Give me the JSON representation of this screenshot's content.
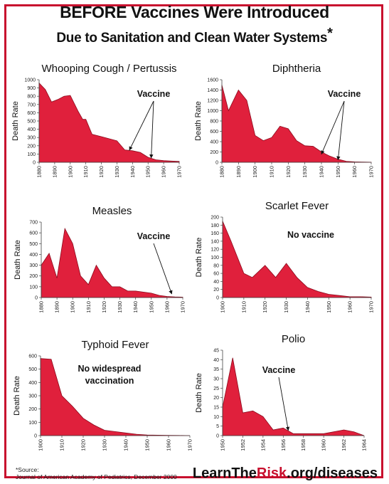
{
  "header": {
    "title_line1": "BEFORE Vaccines Were Introduced",
    "title_line2": "Due to Sanitation and Clean Water Systems",
    "asterisk": "*"
  },
  "footer": {
    "source_label": "*Source:",
    "source_text": "Journal of American Academy of Pediatrics, December 2000",
    "site_prefix": "LearnThe",
    "site_highlight": "Risk",
    "site_suffix": ".org/diseases"
  },
  "colors": {
    "fill": "#e0203c",
    "stroke": "#8a0a1c",
    "axis": "#444444"
  },
  "chart_data": [
    {
      "type": "area",
      "title": "Whooping Cough / Pertussis",
      "ylabel": "Death Rate",
      "xlim": [
        1880,
        1970
      ],
      "ylim": [
        0,
        1000
      ],
      "yticks": [
        0,
        100,
        200,
        300,
        400,
        500,
        600,
        700,
        800,
        900,
        1000
      ],
      "xticks": [
        1880,
        1890,
        1900,
        1910,
        1920,
        1930,
        1940,
        1950,
        1960,
        1970
      ],
      "x": [
        1880,
        1884,
        1888,
        1892,
        1896,
        1900,
        1905,
        1908,
        1910,
        1914,
        1920,
        1930,
        1935,
        1940,
        1945,
        1950,
        1955,
        1960,
        1965,
        1970
      ],
      "y": [
        960,
        880,
        730,
        760,
        800,
        810,
        620,
        520,
        520,
        340,
        310,
        260,
        150,
        140,
        120,
        60,
        30,
        20,
        15,
        10
      ],
      "annotation": {
        "text": "Vaccine",
        "arrows_to": [
          [
            1938,
            130
          ],
          [
            1952,
            35
          ]
        ]
      }
    },
    {
      "type": "area",
      "title": "Diphtheria",
      "ylabel": "Death Rate",
      "xlim": [
        1880,
        1970
      ],
      "ylim": [
        0,
        1600
      ],
      "yticks": [
        0,
        200,
        400,
        600,
        800,
        1000,
        1200,
        1400,
        1600
      ],
      "xticks": [
        1880,
        1890,
        1900,
        1910,
        1920,
        1930,
        1940,
        1950,
        1960,
        1970
      ],
      "x": [
        1880,
        1884,
        1890,
        1895,
        1900,
        1905,
        1910,
        1915,
        1920,
        1925,
        1930,
        1935,
        1940,
        1945,
        1950,
        1955,
        1960,
        1965,
        1970
      ],
      "y": [
        1500,
        1000,
        1400,
        1200,
        520,
        420,
        480,
        700,
        650,
        420,
        320,
        310,
        200,
        120,
        60,
        20,
        8,
        4,
        2
      ],
      "annotation": {
        "text": "Vaccine",
        "arrows_to": [
          [
            1940,
            130
          ],
          [
            1950,
            20
          ]
        ]
      }
    },
    {
      "type": "area",
      "title": "Measles",
      "ylabel": "Death Rate",
      "xlim": [
        1880,
        1970
      ],
      "ylim": [
        0,
        700
      ],
      "yticks": [
        0,
        100,
        200,
        300,
        400,
        500,
        600,
        700
      ],
      "xticks": [
        1880,
        1890,
        1900,
        1910,
        1920,
        1930,
        1940,
        1950,
        1960,
        1970
      ],
      "x": [
        1880,
        1885,
        1890,
        1895,
        1900,
        1905,
        1910,
        1915,
        1920,
        1925,
        1930,
        1935,
        1940,
        1945,
        1950,
        1955,
        1960,
        1965,
        1970
      ],
      "y": [
        300,
        410,
        180,
        640,
        500,
        200,
        120,
        300,
        180,
        100,
        100,
        60,
        60,
        50,
        40,
        20,
        10,
        5,
        3
      ],
      "annotation": {
        "text": "Vaccine",
        "arrows_to": [
          [
            1963,
            20
          ]
        ]
      }
    },
    {
      "type": "area",
      "title": "Scarlet Fever",
      "ylabel": "Death Rate",
      "xlim": [
        1900,
        1970
      ],
      "ylim": [
        0,
        200
      ],
      "yticks": [
        0,
        20,
        40,
        60,
        80,
        100,
        120,
        140,
        160,
        180,
        200
      ],
      "xticks": [
        1900,
        1910,
        1920,
        1930,
        1940,
        1950,
        1960,
        1970
      ],
      "x": [
        1900,
        1904,
        1910,
        1914,
        1920,
        1925,
        1930,
        1935,
        1940,
        1945,
        1950,
        1955,
        1960,
        1965,
        1970
      ],
      "y": [
        190,
        140,
        60,
        50,
        80,
        50,
        85,
        50,
        25,
        15,
        8,
        5,
        2,
        2,
        1
      ],
      "annotation": {
        "text": "No vaccine"
      }
    },
    {
      "type": "area",
      "title": "Typhoid Fever",
      "ylabel": "Death Rate",
      "xlim": [
        1900,
        1970
      ],
      "ylim": [
        0,
        600
      ],
      "yticks": [
        0,
        100,
        200,
        300,
        400,
        500,
        600
      ],
      "xticks": [
        1900,
        1910,
        1920,
        1930,
        1940,
        1950,
        1960,
        1970
      ],
      "x": [
        1900,
        1905,
        1910,
        1915,
        1920,
        1925,
        1930,
        1935,
        1940,
        1945,
        1950,
        1955,
        1960,
        1965,
        1970
      ],
      "y": [
        580,
        575,
        300,
        220,
        130,
        80,
        40,
        30,
        20,
        10,
        5,
        3,
        2,
        1,
        0
      ],
      "annotation": {
        "text": "No widespread vaccination"
      }
    },
    {
      "type": "area",
      "title": "Polio",
      "ylabel": "Death Rate",
      "xlim": [
        1950,
        1964
      ],
      "ylim": [
        0,
        45
      ],
      "yticks": [
        0,
        5,
        10,
        15,
        20,
        25,
        30,
        35,
        40,
        45
      ],
      "xticks": [
        1950,
        1952,
        1954,
        1956,
        1958,
        1960,
        1962,
        1964
      ],
      "x": [
        1950,
        1951,
        1952,
        1953,
        1954,
        1955,
        1956,
        1957,
        1958,
        1959,
        1960,
        1961,
        1962,
        1963,
        1964
      ],
      "y": [
        15,
        41,
        12,
        13,
        10,
        3,
        4,
        1,
        1,
        1,
        1,
        2,
        3,
        2,
        0
      ],
      "annotation": {
        "text": "Vaccine",
        "arrows_to": [
          [
            1956.5,
            2
          ]
        ]
      }
    }
  ]
}
